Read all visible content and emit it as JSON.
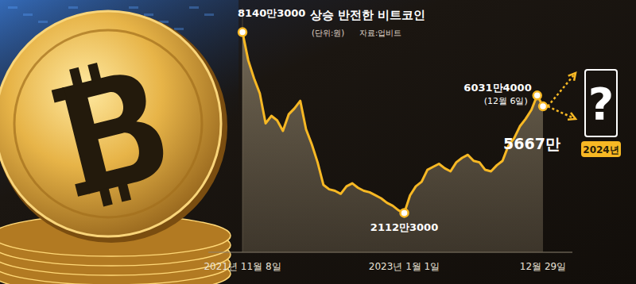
{
  "chart_data": {
    "type": "line",
    "title": "상승 반전한 비트코인",
    "unit": "(단위:원)",
    "source": "자료:업비트",
    "categories": [
      "2021년 11월 8일",
      null,
      null,
      null,
      null,
      null,
      null,
      null,
      null,
      null,
      null,
      null,
      null,
      null,
      null,
      null,
      null,
      null,
      null,
      null,
      null,
      null,
      null,
      null,
      null,
      null,
      null,
      null,
      "2023년 1월 1일",
      null,
      null,
      null,
      null,
      null,
      null,
      null,
      null,
      null,
      null,
      null,
      null,
      null,
      null,
      null,
      null,
      null,
      null,
      null,
      null,
      null,
      null,
      null,
      "12월 29일"
    ],
    "values": [
      81403000,
      72000000,
      66000000,
      61000000,
      51000000,
      53500000,
      52000000,
      48500000,
      54000000,
      56000000,
      58500000,
      49000000,
      44000000,
      38000000,
      30500000,
      29000000,
      28500000,
      27500000,
      30000000,
      31000000,
      29500000,
      28500000,
      28000000,
      27000000,
      26000000,
      24500000,
      23500000,
      22000000,
      21123000,
      27000000,
      30000000,
      31500000,
      35500000,
      36500000,
      37500000,
      36000000,
      35000000,
      38000000,
      39500000,
      40500000,
      38500000,
      38000000,
      35500000,
      35000000,
      37000000,
      38500000,
      43500000,
      46000000,
      50000000,
      52500000,
      55500000,
      60314000,
      56670000
    ],
    "value_labels": [
      "8140만3000",
      null,
      null,
      null,
      null,
      null,
      null,
      null,
      null,
      null,
      null,
      null,
      null,
      null,
      null,
      null,
      null,
      null,
      null,
      null,
      null,
      null,
      null,
      null,
      null,
      null,
      null,
      null,
      "2112만3000",
      null,
      null,
      null,
      null,
      null,
      null,
      null,
      null,
      null,
      null,
      null,
      null,
      null,
      null,
      null,
      null,
      null,
      null,
      null,
      null,
      null,
      null,
      "6031만4000",
      "5667만"
    ],
    "annotations": [
      "(12월 6일)",
      "?",
      "2024년"
    ],
    "color": "#f7b824",
    "ylim": [
      8000000,
      89500000
    ],
    "tick_labels": "x",
    "data_labels": true,
    "grid": false
  }
}
